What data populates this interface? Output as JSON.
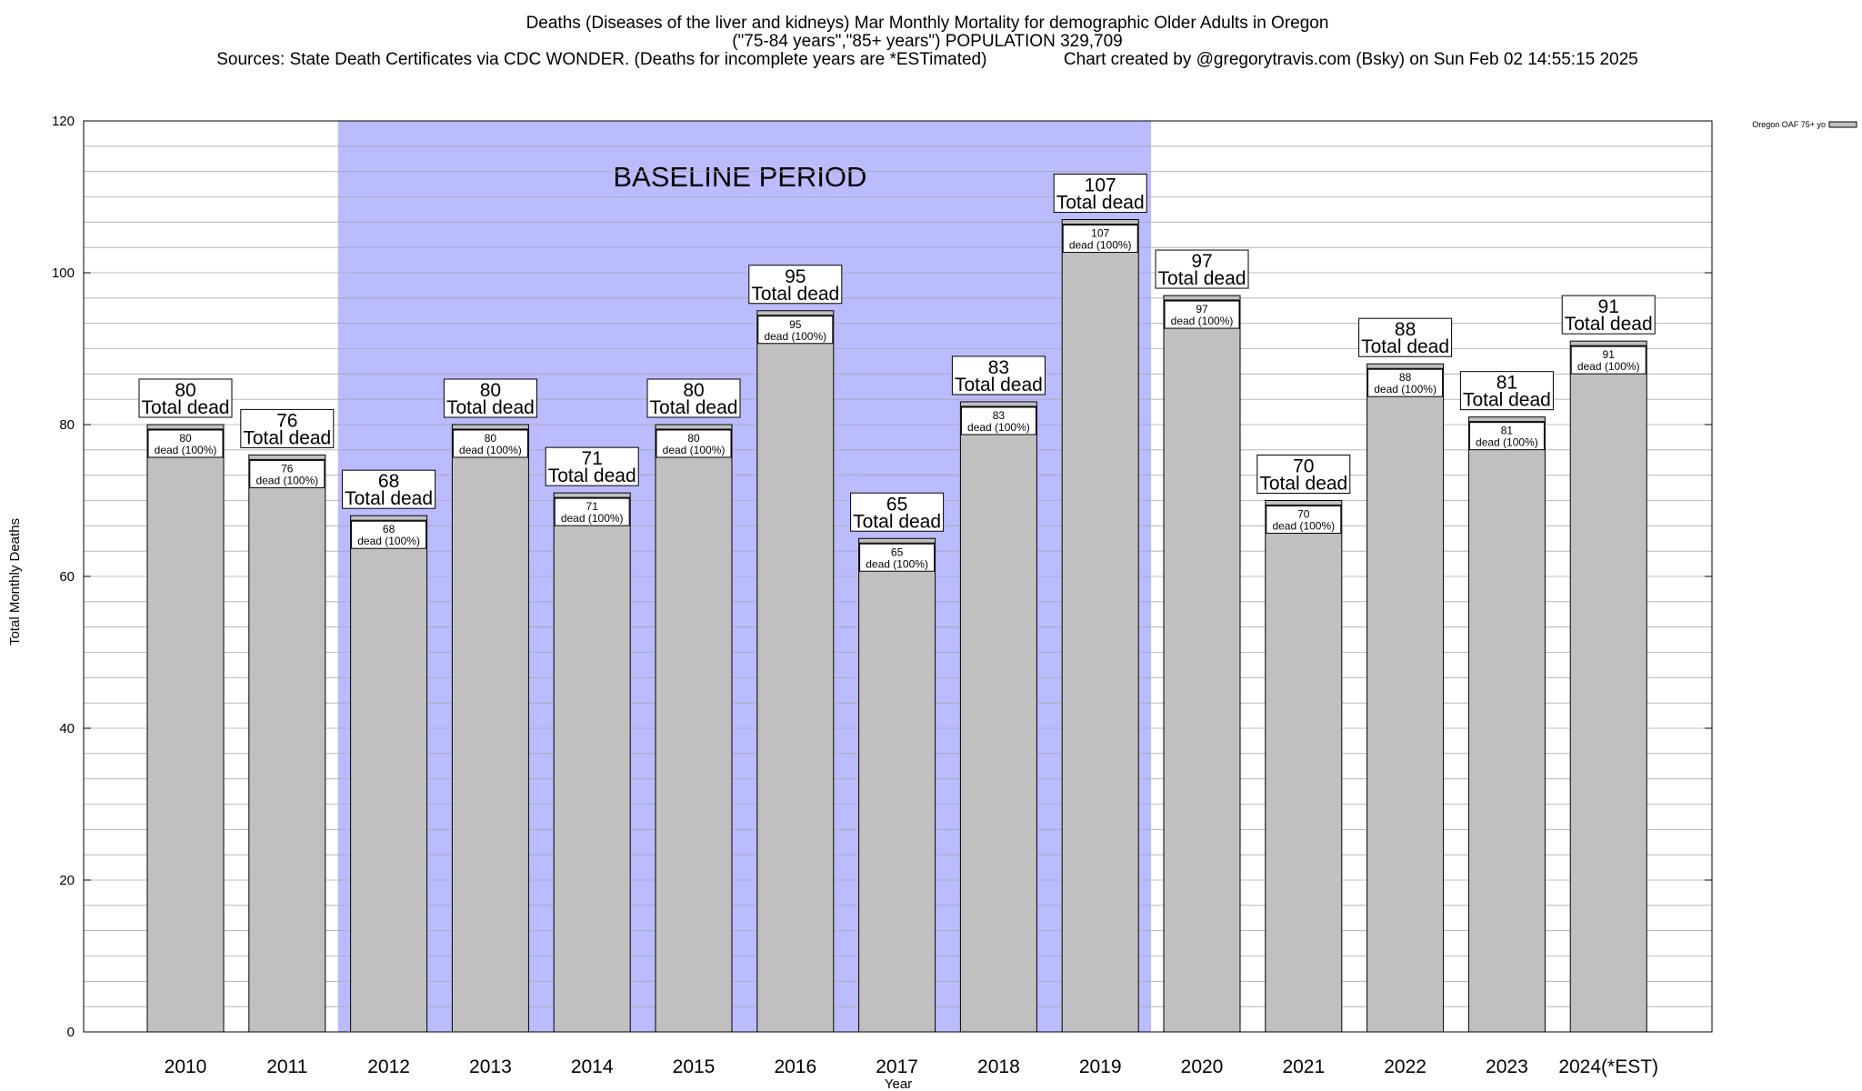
{
  "chart_data": {
    "type": "bar",
    "title_lines": [
      "Deaths (Diseases of the liver and kidneys) Mar Monthly Mortality for demographic Older Adults in Oregon",
      "(\"75-84 years\",\"85+ years\") POPULATION 329,709",
      "Sources: State Death Certificates via CDC WONDER. (Deaths for incomplete years are *ESTimated)                Chart created by @gregorytravis.com (Bsky) on Sun Feb 02 14:55:15 2025"
    ],
    "xlabel": "Year",
    "ylabel": "Total Monthly Deaths",
    "ylim": [
      0,
      120
    ],
    "yticks": [
      0,
      20,
      40,
      60,
      80,
      100,
      120
    ],
    "categories": [
      "2010",
      "2011",
      "2012",
      "2013",
      "2014",
      "2015",
      "2016",
      "2017",
      "2018",
      "2019",
      "2020",
      "2021",
      "2022",
      "2023",
      "2024(*EST)"
    ],
    "series": [
      {
        "name": "Oregon OAF 75+ yo",
        "color": "#c0c0c0",
        "values": [
          80,
          76,
          68,
          80,
          71,
          80,
          95,
          65,
          83,
          107,
          97,
          70,
          88,
          81,
          91
        ]
      }
    ],
    "bar_label_suffix": "Total dead",
    "inner_label_suffix": "dead (100%)",
    "baseline_period": {
      "label": "BASELINE PERIOD",
      "start_category": "2012",
      "end_category": "2019",
      "color": "#bbbbff"
    },
    "grid": true,
    "legend_position": "top-right"
  }
}
